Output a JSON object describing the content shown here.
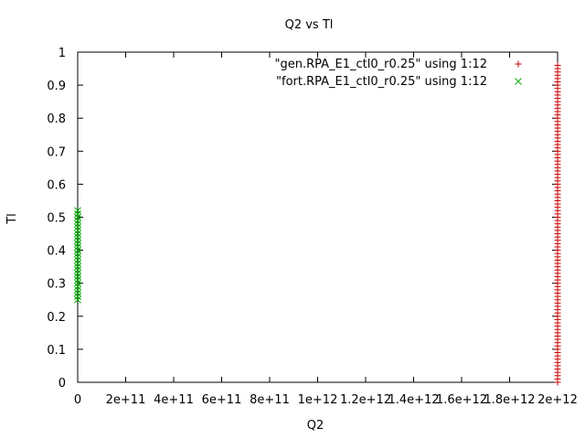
{
  "chart_data": {
    "type": "scatter",
    "title": "Q2 vs Tl",
    "xlabel": "Q2",
    "ylabel": "Tl",
    "xlim": [
      0,
      2000000000000
    ],
    "ylim": [
      0,
      1
    ],
    "grid": false,
    "legend_position": "top-right",
    "x_ticks": [
      {
        "value": 0,
        "label": "0"
      },
      {
        "value": 200000000000,
        "label": "2e+11"
      },
      {
        "value": 400000000000,
        "label": "4e+11"
      },
      {
        "value": 600000000000,
        "label": "6e+11"
      },
      {
        "value": 800000000000,
        "label": "8e+11"
      },
      {
        "value": 1000000000000,
        "label": "1e+12"
      },
      {
        "value": 1200000000000,
        "label": "1.2e+12"
      },
      {
        "value": 1400000000000,
        "label": "1.4e+12"
      },
      {
        "value": 1600000000000,
        "label": "1.6e+12"
      },
      {
        "value": 1800000000000,
        "label": "1.8e+12"
      },
      {
        "value": 2000000000000,
        "label": "2e+12"
      }
    ],
    "y_ticks": [
      {
        "value": 0,
        "label": "0"
      },
      {
        "value": 0.1,
        "label": "0.1"
      },
      {
        "value": 0.2,
        "label": "0.2"
      },
      {
        "value": 0.3,
        "label": "0.3"
      },
      {
        "value": 0.4,
        "label": "0.4"
      },
      {
        "value": 0.5,
        "label": "0.5"
      },
      {
        "value": 0.6,
        "label": "0.6"
      },
      {
        "value": 0.7,
        "label": "0.7"
      },
      {
        "value": 0.8,
        "label": "0.8"
      },
      {
        "value": 0.9,
        "label": "0.9"
      },
      {
        "value": 1,
        "label": "1"
      }
    ],
    "series": [
      {
        "name": "\"gen.RPA_E1_ctl0_r0.25\" using 1:12",
        "marker": "plus",
        "color": "#cc0000",
        "x_value": 2000000000000,
        "y_values": [
          0.0,
          0.01,
          0.02,
          0.03,
          0.04,
          0.05,
          0.06,
          0.07,
          0.08,
          0.09,
          0.1,
          0.11,
          0.12,
          0.13,
          0.14,
          0.15,
          0.16,
          0.17,
          0.18,
          0.19,
          0.2,
          0.21,
          0.22,
          0.23,
          0.24,
          0.25,
          0.26,
          0.27,
          0.28,
          0.29,
          0.3,
          0.31,
          0.32,
          0.33,
          0.34,
          0.35,
          0.36,
          0.37,
          0.38,
          0.39,
          0.4,
          0.41,
          0.42,
          0.43,
          0.44,
          0.45,
          0.46,
          0.47,
          0.48,
          0.49,
          0.5,
          0.51,
          0.52,
          0.53,
          0.54,
          0.55,
          0.56,
          0.57,
          0.58,
          0.59,
          0.6,
          0.61,
          0.62,
          0.63,
          0.64,
          0.65,
          0.66,
          0.67,
          0.68,
          0.69,
          0.7,
          0.71,
          0.72,
          0.73,
          0.74,
          0.75,
          0.76,
          0.77,
          0.78,
          0.79,
          0.8,
          0.81,
          0.82,
          0.83,
          0.84,
          0.85,
          0.86,
          0.87,
          0.88,
          0.89,
          0.9,
          0.91,
          0.92,
          0.93,
          0.94,
          0.95,
          0.96
        ]
      },
      {
        "name": "\"fort.RPA_E1_ctl0_r0.25\" using 1:12",
        "marker": "x",
        "color": "#00aa00",
        "x_value": 0,
        "y_values": [
          0.25,
          0.26,
          0.27,
          0.28,
          0.29,
          0.3,
          0.31,
          0.32,
          0.33,
          0.34,
          0.35,
          0.36,
          0.37,
          0.38,
          0.39,
          0.4,
          0.41,
          0.42,
          0.43,
          0.44,
          0.45,
          0.46,
          0.47,
          0.48,
          0.49,
          0.5,
          0.51,
          0.52
        ]
      }
    ]
  }
}
